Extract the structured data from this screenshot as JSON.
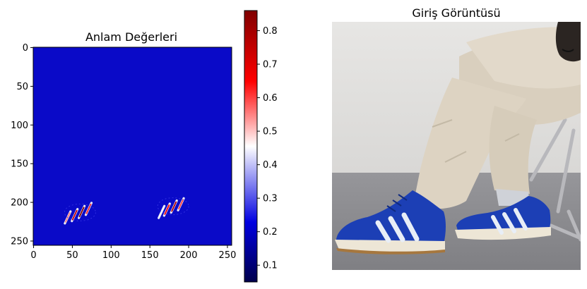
{
  "chart_data": [
    {
      "type": "heatmap",
      "title": "Anlam Değerleri",
      "xlabel": "",
      "ylabel": "",
      "xlim": [
        0,
        255
      ],
      "ylim": [
        255,
        0
      ],
      "x_ticks": [
        "0",
        "50",
        "100",
        "150",
        "200",
        "250"
      ],
      "y_ticks": [
        "0",
        "50",
        "100",
        "150",
        "200",
        "250"
      ],
      "background_value": 0.18,
      "hotspots": [
        {
          "x": 62,
          "y": 212,
          "value": 0.86
        },
        {
          "x": 53,
          "y": 216,
          "value": 0.74
        },
        {
          "x": 71,
          "y": 208,
          "value": 0.62
        },
        {
          "x": 44,
          "y": 219,
          "value": 0.55
        },
        {
          "x": 181,
          "y": 205,
          "value": 0.78
        },
        {
          "x": 172,
          "y": 209,
          "value": 0.66
        },
        {
          "x": 190,
          "y": 202,
          "value": 0.6
        },
        {
          "x": 165,
          "y": 212,
          "value": 0.45
        }
      ],
      "colorbar": {
        "colormap": "seismic",
        "min": 0.05,
        "max": 0.86,
        "ticks": [
          "0.1",
          "0.2",
          "0.3",
          "0.4",
          "0.5",
          "0.6",
          "0.7",
          "0.8"
        ]
      }
    }
  ],
  "image_panel": {
    "title": "Giriş Görüntüsü",
    "description_icon": "sneakers-photo"
  },
  "colors": {
    "heatmap_background": "#0a0ac8",
    "shoe_blue": "#1c3fb5",
    "trouser": "#ddd3c2",
    "wall": "#e4e3e1",
    "floor": "#8c8c8e"
  }
}
